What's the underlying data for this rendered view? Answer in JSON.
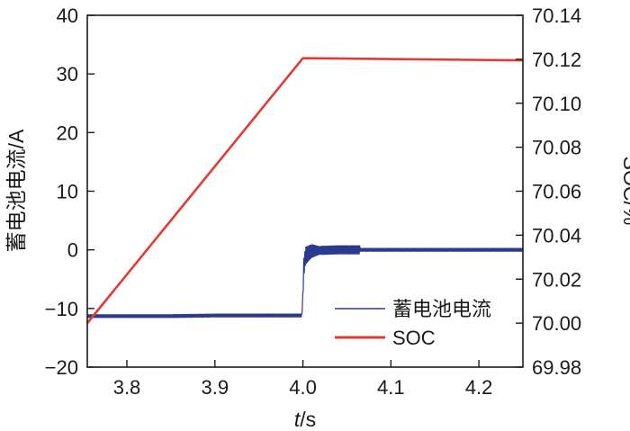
{
  "chart_data": {
    "type": "line",
    "title": "",
    "xlabel_italic": "t",
    "xlabel_rest": "/s",
    "ylabel_left": "蓄电池电流/A",
    "ylabel_right": "SOC/%",
    "xlim": [
      3.755,
      4.25
    ],
    "ylim_left": [
      -20,
      40
    ],
    "ylim_right": [
      69.98,
      70.14
    ],
    "x_ticks": [
      3.8,
      3.9,
      4.0,
      4.1,
      4.2
    ],
    "x_tick_labels": [
      "3.8",
      "3.9",
      "4.0",
      "4.1",
      "4.2"
    ],
    "y_left_ticks": [
      -20,
      -10,
      0,
      10,
      20,
      30,
      40
    ],
    "y_left_tick_labels": [
      "−20",
      "−10",
      "0",
      "10",
      "20",
      "30",
      "40"
    ],
    "y_right_ticks": [
      69.98,
      70.0,
      70.02,
      70.04,
      70.06,
      70.08,
      70.1,
      70.12,
      70.14
    ],
    "y_right_tick_labels": [
      "69.98",
      "70.00",
      "70.02",
      "70.04",
      "70.06",
      "70.08",
      "70.10",
      "70.12",
      "70.14"
    ],
    "grid": false,
    "legend_position": "bottom-right",
    "series": [
      {
        "name": "蓄电池电流",
        "axis": "left",
        "color": "#2b3990",
        "x": [
          3.755,
          3.8,
          3.85,
          3.9,
          3.95,
          3.999,
          4.0,
          4.001,
          4.003,
          4.01,
          4.02,
          4.04,
          4.06,
          4.07,
          4.1,
          4.15,
          4.2,
          4.25
        ],
        "y": [
          -11.3,
          -11.3,
          -11.3,
          -11.2,
          -11.2,
          -11.2,
          -7.0,
          -3.0,
          -1.0,
          -0.2,
          -0.1,
          0.0,
          0.0,
          0.0,
          0.0,
          0.0,
          0.0,
          0.0
        ]
      },
      {
        "name": "SOC",
        "axis": "right",
        "color": "#e03a32",
        "x": [
          3.755,
          4.0,
          4.25
        ],
        "y": [
          70.0,
          70.1205,
          70.1195
        ]
      }
    ],
    "legend_line_colors": {
      "current": "#2b3990",
      "soc": "#e03a32"
    }
  }
}
